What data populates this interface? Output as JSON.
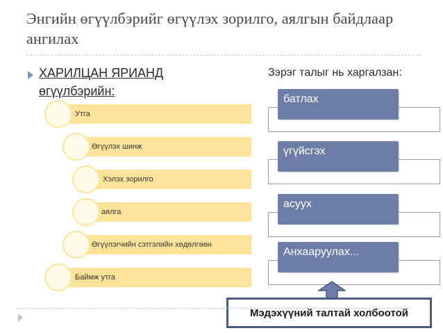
{
  "slide": {
    "title": "Энгийн өгүүлбэрийг өгүүлэх зорилго, аялгын байдлаар ангилах",
    "bullet": {
      "line1": "ХАРИЛЦАН ЯРИАНД",
      "line2": "өгүүлбэрийн:"
    },
    "levels": [
      "Утга",
      "Өгүүлэх шинж",
      "Хэлэх зорилго",
      "аялга",
      "Өгүүлэгчийн сэтгэлийн хөдөлгөөн",
      "Баймж утга"
    ],
    "right_title": "Зэрэг талыг нь харгалзан:",
    "boxes": [
      "батлах",
      "үгүйсгэх",
      "асуух",
      "Анхааруулах..."
    ],
    "callout": "Мэдэхүүний талтай холбоотой"
  },
  "colors": {
    "level_fill": "#fde49a",
    "box_fill": "#6e7da6",
    "callout_border": "#4a5a82"
  }
}
